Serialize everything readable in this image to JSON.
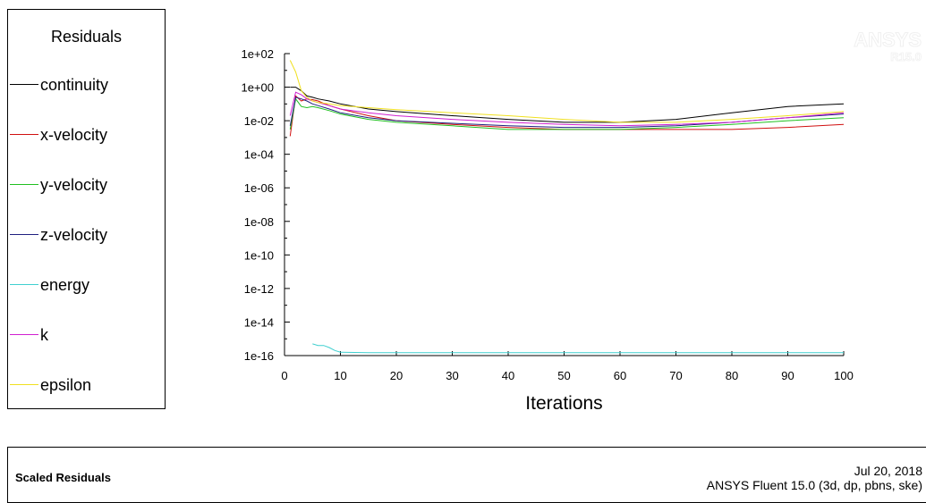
{
  "legend": {
    "title": "Residuals",
    "items": [
      {
        "label": "continuity",
        "color": "#000000"
      },
      {
        "label": "x-velocity",
        "color": "#d01010"
      },
      {
        "label": "y-velocity",
        "color": "#20c020"
      },
      {
        "label": "z-velocity",
        "color": "#202080"
      },
      {
        "label": "energy",
        "color": "#40d0d0"
      },
      {
        "label": "k",
        "color": "#d020d0"
      },
      {
        "label": "epsilon",
        "color": "#f0e020"
      }
    ]
  },
  "footer": {
    "left": "Scaled Residuals",
    "date": "Jul 20, 2018",
    "version": "ANSYS Fluent 15.0 (3d, dp, pbns, ske)"
  },
  "watermark": {
    "brand": "ANSYS",
    "version": "R15.0"
  },
  "chart_data": {
    "type": "line",
    "xlabel": "Iterations",
    "ylabel": "",
    "xlim": [
      0,
      100
    ],
    "ylim": [
      1e-16,
      100
    ],
    "yscale": "log",
    "x_ticks": [
      "0",
      "10",
      "20",
      "30",
      "40",
      "50",
      "60",
      "70",
      "80",
      "90",
      "100"
    ],
    "y_ticks": [
      "1e+02",
      "1e+00",
      "1e-02",
      "1e-04",
      "1e-06",
      "1e-08",
      "1e-10",
      "1e-12",
      "1e-14",
      "1e-16"
    ],
    "series": [
      {
        "name": "continuity",
        "color": "#000000",
        "x": [
          1,
          2,
          3,
          4,
          5,
          6,
          8,
          10,
          15,
          20,
          30,
          40,
          50,
          60,
          70,
          80,
          90,
          100
        ],
        "y": [
          1,
          1,
          0.6,
          0.3,
          0.25,
          0.2,
          0.15,
          0.1,
          0.05,
          0.035,
          0.02,
          0.012,
          0.008,
          0.008,
          0.012,
          0.03,
          0.07,
          0.1
        ]
      },
      {
        "name": "x-velocity",
        "color": "#d01010",
        "x": [
          1,
          2,
          3,
          4,
          5,
          6,
          8,
          10,
          15,
          20,
          30,
          40,
          50,
          60,
          70,
          80,
          90,
          100
        ],
        "y": [
          0.0012,
          0.3,
          0.15,
          0.2,
          0.18,
          0.15,
          0.08,
          0.05,
          0.02,
          0.01,
          0.006,
          0.004,
          0.003,
          0.003,
          0.003,
          0.003,
          0.004,
          0.006
        ]
      },
      {
        "name": "y-velocity",
        "color": "#20c020",
        "x": [
          1,
          2,
          3,
          4,
          5,
          6,
          8,
          10,
          15,
          20,
          30,
          40,
          50,
          60,
          70,
          80,
          90,
          100
        ],
        "y": [
          0.003,
          0.2,
          0.07,
          0.06,
          0.07,
          0.06,
          0.04,
          0.025,
          0.012,
          0.008,
          0.005,
          0.003,
          0.003,
          0.003,
          0.004,
          0.006,
          0.01,
          0.015
        ]
      },
      {
        "name": "z-velocity",
        "color": "#202080",
        "x": [
          1,
          2,
          3,
          4,
          5,
          6,
          8,
          10,
          15,
          20,
          30,
          40,
          50,
          60,
          70,
          80,
          90,
          100
        ],
        "y": [
          0.005,
          0.25,
          0.2,
          0.15,
          0.1,
          0.08,
          0.05,
          0.03,
          0.015,
          0.01,
          0.007,
          0.005,
          0.004,
          0.004,
          0.005,
          0.008,
          0.015,
          0.025
        ]
      },
      {
        "name": "energy",
        "color": "#40d0d0",
        "x": [
          5,
          6,
          7,
          8,
          9,
          10,
          15,
          20,
          30,
          40,
          50,
          60,
          70,
          80,
          90,
          100
        ],
        "y": [
          5e-16,
          4e-16,
          4e-16,
          3e-16,
          2e-16,
          1.6e-16,
          1.5e-16,
          1.5e-16,
          1.5e-16,
          1.5e-16,
          1.5e-16,
          1.5e-16,
          1.5e-16,
          1.5e-16,
          1.5e-16,
          1.5e-16
        ]
      },
      {
        "name": "k",
        "color": "#d020d0",
        "x": [
          1,
          2,
          3,
          4,
          5,
          6,
          8,
          10,
          15,
          20,
          30,
          40,
          50,
          60,
          70,
          80,
          90,
          100
        ],
        "y": [
          0.02,
          0.5,
          0.35,
          0.2,
          0.15,
          0.12,
          0.08,
          0.05,
          0.03,
          0.02,
          0.012,
          0.008,
          0.006,
          0.005,
          0.006,
          0.008,
          0.015,
          0.03
        ]
      },
      {
        "name": "epsilon",
        "color": "#f0e020",
        "x": [
          1,
          2,
          3,
          4,
          5,
          6,
          8,
          10,
          15,
          20,
          30,
          40,
          50,
          60,
          70,
          80,
          90,
          100
        ],
        "y": [
          40,
          8,
          0.6,
          0.25,
          0.15,
          0.12,
          0.1,
          0.08,
          0.06,
          0.045,
          0.03,
          0.02,
          0.012,
          0.008,
          0.008,
          0.012,
          0.02,
          0.035
        ]
      }
    ]
  }
}
